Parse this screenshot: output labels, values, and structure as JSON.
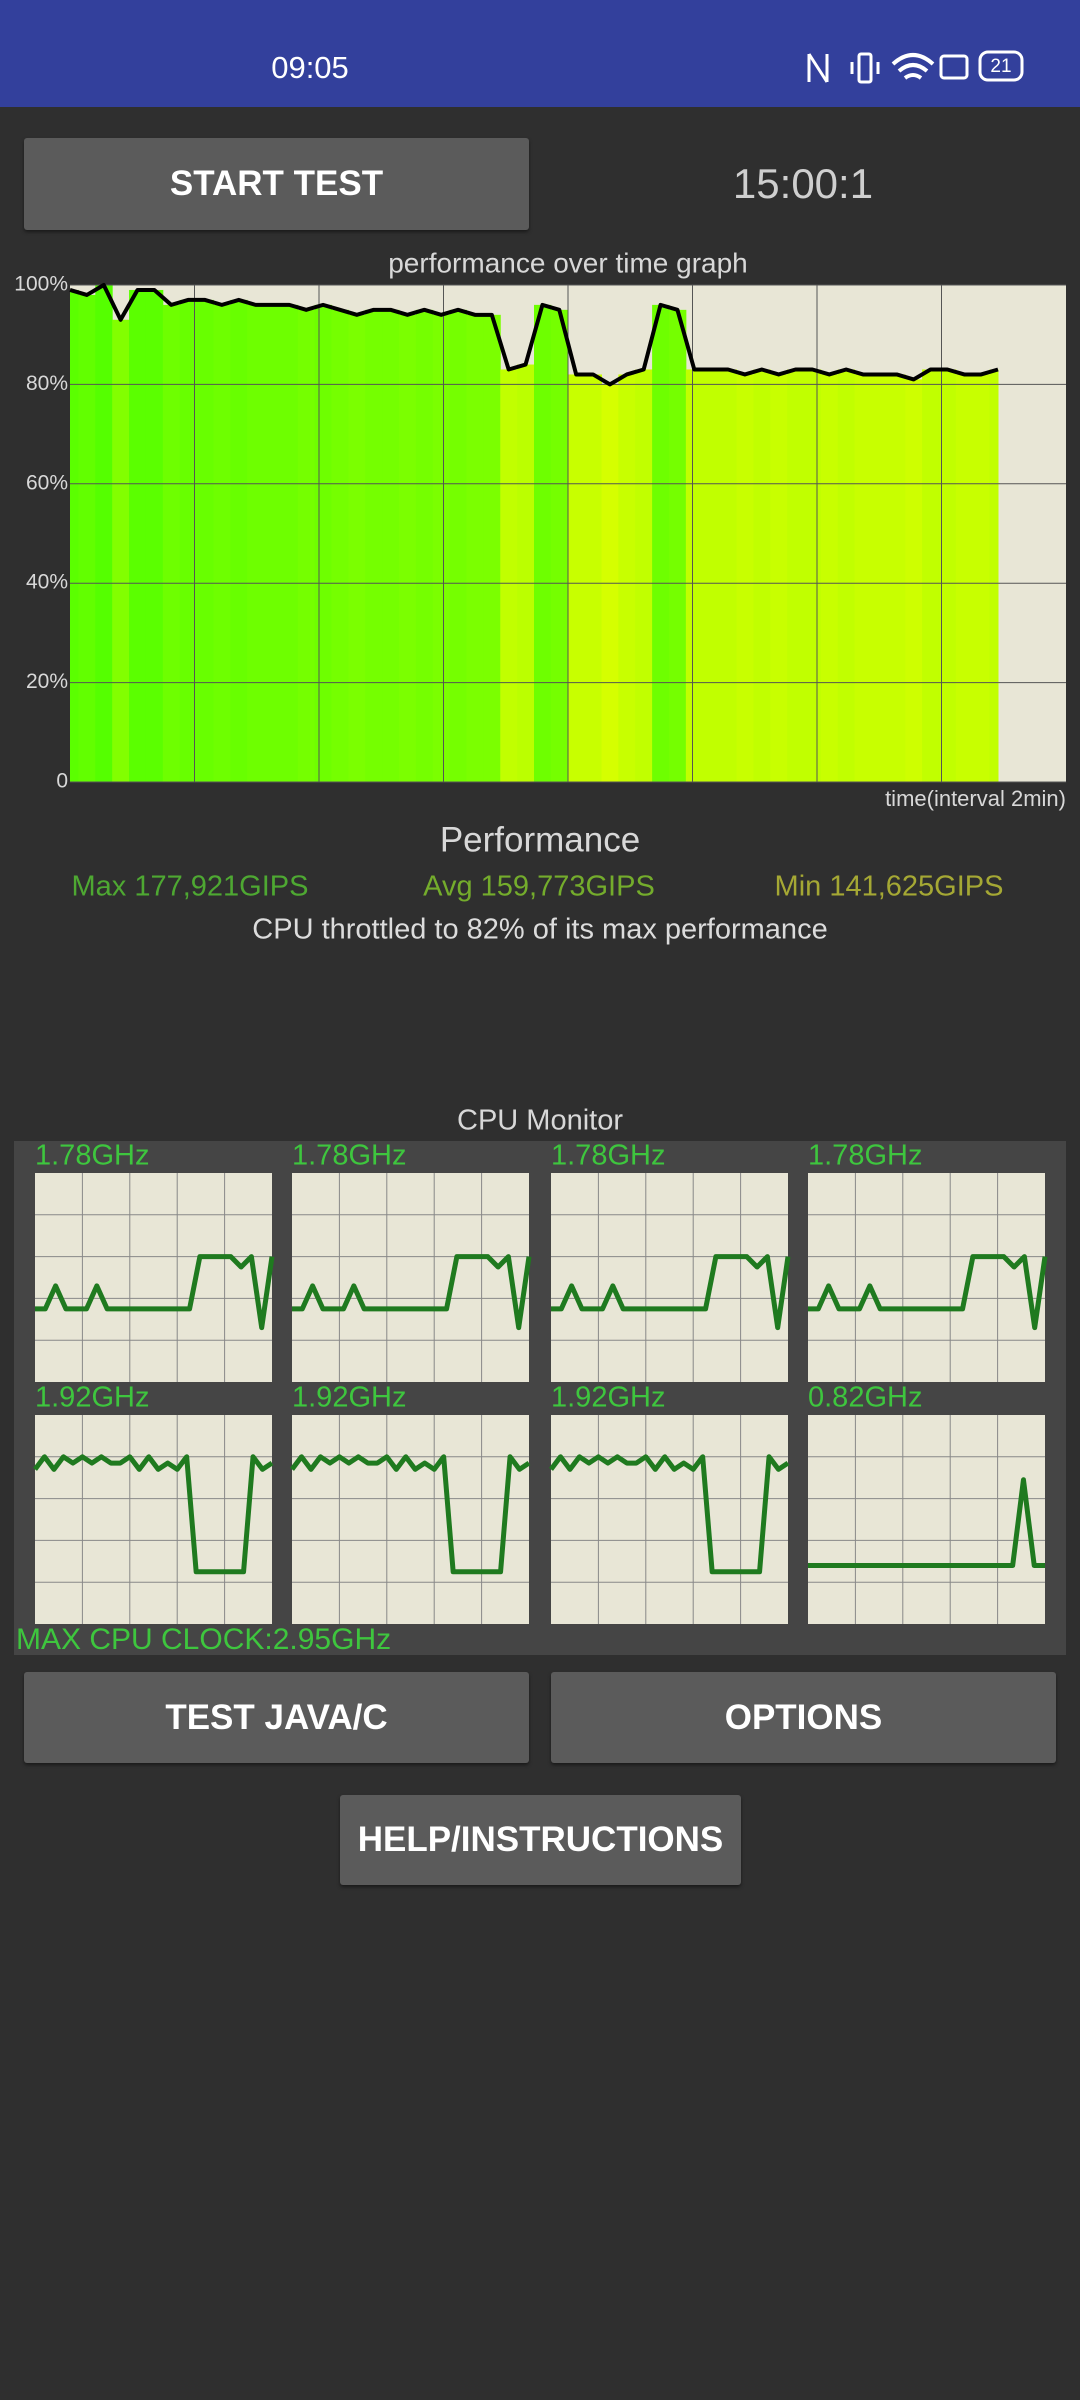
{
  "status_bar": {
    "time": "09:05",
    "battery": "21"
  },
  "start_button": "START TEST",
  "timer": "15:00:1",
  "chart_data": {
    "type": "line",
    "title": "performance over time graph",
    "x_label": "time(interval 2min)",
    "ylim": [
      0,
      100
    ],
    "yticks": [
      0,
      {
        "value": 20,
        "label": "20%"
      },
      {
        "value": 40,
        "label": "40%"
      },
      {
        "value": 60,
        "label": "60%"
      },
      {
        "value": 80,
        "label": "80%"
      },
      {
        "value": 100,
        "label": "100%"
      }
    ],
    "grid": true,
    "color": "#000000",
    "values": [
      99,
      98,
      100,
      93,
      99,
      99,
      96,
      97,
      97,
      96,
      97,
      96,
      96,
      96,
      95,
      96,
      95,
      94,
      95,
      95,
      94,
      95,
      94,
      95,
      94,
      94,
      83,
      84,
      96,
      95,
      82,
      82,
      80,
      82,
      83,
      96,
      95,
      83,
      83,
      83,
      82,
      83,
      82,
      83,
      83,
      82,
      83,
      82,
      82,
      82,
      81,
      83,
      83,
      82,
      82,
      83
    ]
  },
  "performance": {
    "heading": "Performance",
    "max": "Max 177,921GIPS",
    "avg": "Avg 159,773GIPS",
    "min": "Min 141,625GIPS",
    "throttle": "CPU throttled to 82% of its max performance"
  },
  "cpu_monitor": {
    "title": "CPU Monitor",
    "max_clock": "MAX CPU CLOCK:2.95GHz",
    "cores": [
      {
        "label": "1.78GHz",
        "values": [
          35,
          35,
          46,
          35,
          35,
          35,
          46,
          35,
          35,
          35,
          35,
          35,
          35,
          35,
          35,
          35,
          60,
          60,
          60,
          60,
          55,
          60,
          26,
          60
        ]
      },
      {
        "label": "1.78GHz",
        "values": [
          35,
          35,
          46,
          35,
          35,
          35,
          46,
          35,
          35,
          35,
          35,
          35,
          35,
          35,
          35,
          35,
          60,
          60,
          60,
          60,
          55,
          60,
          26,
          60
        ]
      },
      {
        "label": "1.78GHz",
        "values": [
          35,
          35,
          46,
          35,
          35,
          35,
          46,
          35,
          35,
          35,
          35,
          35,
          35,
          35,
          35,
          35,
          60,
          60,
          60,
          60,
          55,
          60,
          26,
          60
        ]
      },
      {
        "label": "1.78GHz",
        "values": [
          35,
          35,
          46,
          35,
          35,
          35,
          46,
          35,
          35,
          35,
          35,
          35,
          35,
          35,
          35,
          35,
          60,
          60,
          60,
          60,
          55,
          60,
          26,
          60
        ]
      },
      {
        "label": "1.92GHz",
        "values": [
          74,
          80,
          74,
          80,
          77,
          80,
          77,
          80,
          77,
          77,
          80,
          74,
          80,
          74,
          77,
          74,
          80,
          25,
          25,
          25,
          25,
          25,
          25,
          80,
          74,
          77
        ]
      },
      {
        "label": "1.92GHz",
        "values": [
          74,
          80,
          74,
          80,
          77,
          80,
          77,
          80,
          77,
          77,
          80,
          74,
          80,
          74,
          77,
          74,
          80,
          25,
          25,
          25,
          25,
          25,
          25,
          80,
          74,
          77
        ]
      },
      {
        "label": "1.92GHz",
        "values": [
          74,
          80,
          74,
          80,
          77,
          80,
          77,
          80,
          77,
          77,
          80,
          74,
          80,
          74,
          77,
          74,
          80,
          25,
          25,
          25,
          25,
          25,
          25,
          80,
          74,
          77
        ]
      },
      {
        "label": "0.82GHz",
        "values": [
          28,
          28,
          28,
          28,
          28,
          28,
          28,
          28,
          28,
          28,
          28,
          28,
          28,
          28,
          28,
          28,
          28,
          28,
          28,
          28,
          69,
          28,
          28
        ]
      }
    ]
  },
  "buttons": {
    "test": "TEST JAVA/C",
    "options": "OPTIONS",
    "help": "HELP/INSTRUCTIONS"
  }
}
